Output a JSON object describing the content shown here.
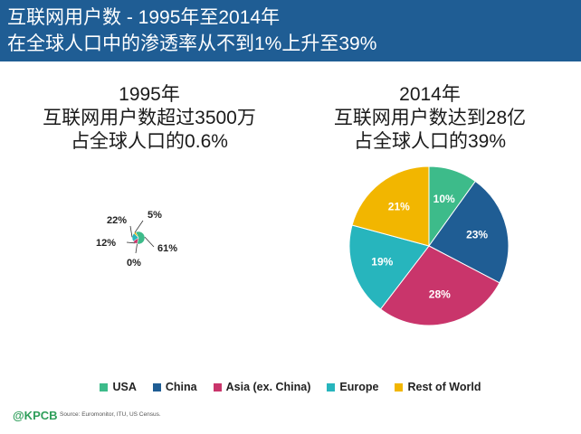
{
  "header": {
    "line1": "互联网用户数 - 1995年至2014年",
    "line2": "在全球人口中的渗透率从不到1%上升至39%"
  },
  "left": {
    "title1": "1995年",
    "title2": "互联网用户数超过3500万",
    "title3": "占全球人口的0.6%"
  },
  "right": {
    "title1": "2014年",
    "title2": "互联网用户数达到28亿",
    "title3": "占全球人口的39%"
  },
  "colors": {
    "USA": "#3dbb8a",
    "China": "#1f5d94",
    "Asia (ex. China)": "#c9356b",
    "Europe": "#27b5bd",
    "Rest of World": "#f2b600"
  },
  "chart_data": [
    {
      "type": "pie",
      "categories": [
        "USA",
        "China",
        "Asia (ex. China)",
        "Europe",
        "Rest of World"
      ],
      "values": [
        61,
        0,
        12,
        22,
        5
      ],
      "labels": [
        "61%",
        "0%",
        "12%",
        "22%",
        "5%"
      ]
    },
    {
      "type": "pie",
      "categories": [
        "USA",
        "China",
        "Asia (ex. China)",
        "Europe",
        "Rest of World"
      ],
      "values": [
        10,
        23,
        28,
        19,
        21
      ],
      "labels": [
        "10%",
        "23%",
        "28%",
        "19%",
        "21%"
      ]
    }
  ],
  "legend": {
    "items": [
      "USA",
      "China",
      "Asia (ex. China)",
      "Europe",
      "Rest of World"
    ]
  },
  "footer": {
    "logo": "@KPCB",
    "source": "Source: Euromonitor, ITU, US Census."
  }
}
